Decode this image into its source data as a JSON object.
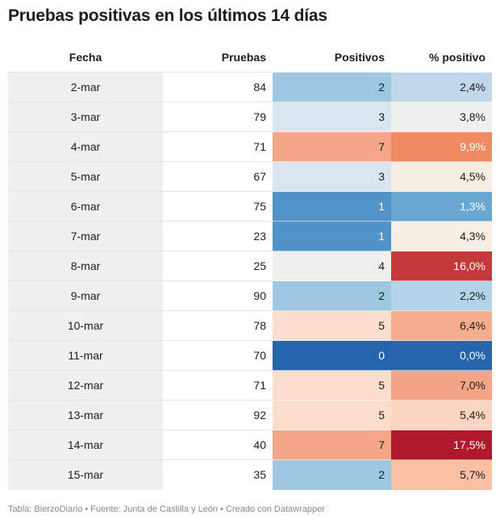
{
  "title": "Pruebas positivas en los últimos 14 días",
  "footer": "Tabla: BierzoDiario • Fuente: Junta de Castilla y León • Creado con Datawrapper",
  "chart_data": {
    "type": "table",
    "columns": [
      "Fecha",
      "Pruebas",
      "Positivos",
      "% positivo"
    ],
    "rows": [
      {
        "fecha": "2-mar",
        "pruebas": "84",
        "positivos": "2",
        "pct": "2,4%",
        "pos_color": "#9ec7e1",
        "pos_text": "#1d1d1d",
        "pct_color": "#c0d9ea",
        "pct_text": "#1d1d1d"
      },
      {
        "fecha": "3-mar",
        "pruebas": "79",
        "positivos": "3",
        "pct": "3,8%",
        "pos_color": "#d8e6ef",
        "pos_text": "#1d1d1d",
        "pct_color": "#eef1ec",
        "pct_text": "#1d1d1d"
      },
      {
        "fecha": "4-mar",
        "pruebas": "71",
        "positivos": "7",
        "pct": "9,9%",
        "pos_color": "#f5a686",
        "pos_text": "#1d1d1d",
        "pct_color": "#ef8a62",
        "pct_text": "#ffffff"
      },
      {
        "fecha": "5-mar",
        "pruebas": "67",
        "positivos": "3",
        "pct": "4,5%",
        "pos_color": "#d8e6ef",
        "pos_text": "#1d1d1d",
        "pct_color": "#f7eee2",
        "pct_text": "#1d1d1d"
      },
      {
        "fecha": "6-mar",
        "pruebas": "75",
        "positivos": "1",
        "pct": "1,3%",
        "pos_color": "#5294c8",
        "pos_text": "#ffffff",
        "pct_color": "#68a8d0",
        "pct_text": "#ffffff"
      },
      {
        "fecha": "7-mar",
        "pruebas": "23",
        "positivos": "1",
        "pct": "4,3%",
        "pos_color": "#5294c8",
        "pos_text": "#ffffff",
        "pct_color": "#f7efe3",
        "pct_text": "#1d1d1d"
      },
      {
        "fecha": "8-mar",
        "pruebas": "25",
        "positivos": "4",
        "pct": "16,0%",
        "pos_color": "#eef0eb",
        "pos_text": "#1d1d1d",
        "pct_color": "#c43a3b",
        "pct_text": "#ffffff"
      },
      {
        "fecha": "9-mar",
        "pruebas": "90",
        "positivos": "2",
        "pct": "2,2%",
        "pos_color": "#9ec7e1",
        "pos_text": "#1d1d1d",
        "pct_color": "#b3d3e8",
        "pct_text": "#1d1d1d"
      },
      {
        "fecha": "10-mar",
        "pruebas": "78",
        "positivos": "5",
        "pct": "6,4%",
        "pos_color": "#fbdfcc",
        "pos_text": "#1d1d1d",
        "pct_color": "#f5ae8d",
        "pct_text": "#1d1d1d"
      },
      {
        "fecha": "11-mar",
        "pruebas": "70",
        "positivos": "0",
        "pct": "0,0%",
        "pos_color": "#2465ad",
        "pos_text": "#ffffff",
        "pct_color": "#2465ad",
        "pct_text": "#ffffff"
      },
      {
        "fecha": "12-mar",
        "pruebas": "71",
        "positivos": "5",
        "pct": "7,0%",
        "pos_color": "#fbdfcc",
        "pos_text": "#1d1d1d",
        "pct_color": "#f4a586",
        "pct_text": "#1d1d1d"
      },
      {
        "fecha": "13-mar",
        "pruebas": "92",
        "positivos": "5",
        "pct": "5,4%",
        "pos_color": "#fbdfcc",
        "pos_text": "#1d1d1d",
        "pct_color": "#fbd5bf",
        "pct_text": "#1d1d1d"
      },
      {
        "fecha": "14-mar",
        "pruebas": "40",
        "positivos": "7",
        "pct": "17,5%",
        "pos_color": "#f5a686",
        "pos_text": "#1d1d1d",
        "pct_color": "#b2182b",
        "pct_text": "#ffffff"
      },
      {
        "fecha": "15-mar",
        "pruebas": "35",
        "positivos": "2",
        "pct": "5,7%",
        "pos_color": "#9ec7e1",
        "pos_text": "#1d1d1d",
        "pct_color": "#f9c0a3",
        "pct_text": "#1d1d1d"
      }
    ]
  }
}
